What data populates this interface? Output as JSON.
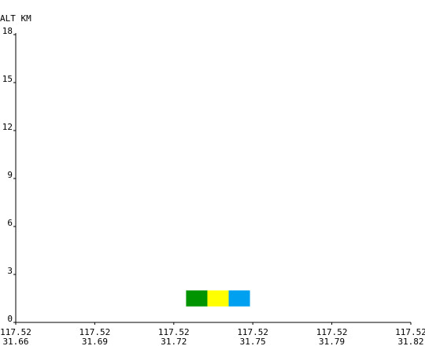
{
  "chart_data": {
    "type": "heatmap",
    "ylabel": "ALT KM",
    "ylim": [
      0,
      18
    ],
    "y_ticks": [
      "0",
      "3",
      "6",
      "9",
      "12",
      "15",
      "18"
    ],
    "x_ticks": [
      {
        "lon": "117.52",
        "lat": "31.66"
      },
      {
        "lon": "117.52",
        "lat": "31.69"
      },
      {
        "lon": "117.52",
        "lat": "31.72"
      },
      {
        "lon": "117.52",
        "lat": "31.75"
      },
      {
        "lon": "117.52",
        "lat": "31.79"
      },
      {
        "lon": "117.52",
        "lat": "31.82"
      }
    ],
    "cells": [
      {
        "x": 31.727,
        "x_end": 31.736,
        "alt_bottom": 1.0,
        "alt_top": 2.0,
        "color": "#009400"
      },
      {
        "x": 31.736,
        "x_end": 31.745,
        "alt_bottom": 1.0,
        "alt_top": 2.0,
        "color": "#ffff00"
      },
      {
        "x": 31.745,
        "x_end": 31.754,
        "alt_bottom": 1.0,
        "alt_top": 2.0,
        "color": "#00a0f0"
      }
    ],
    "grid": false
  }
}
